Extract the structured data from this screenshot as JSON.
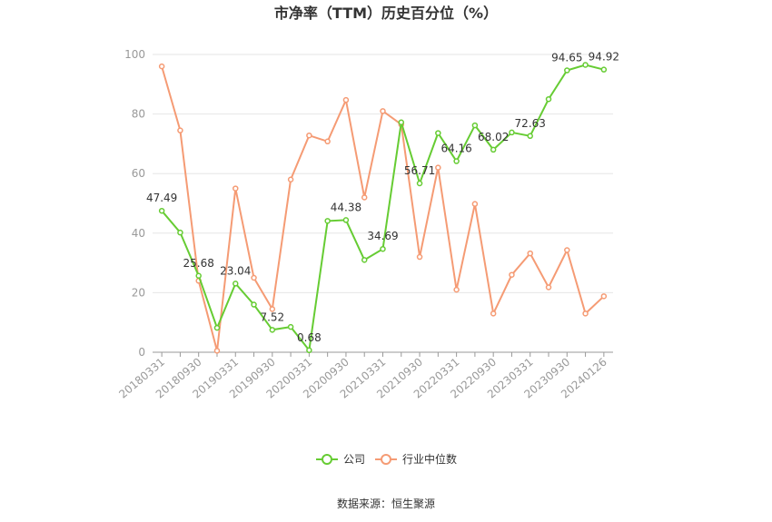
{
  "chart_data": {
    "type": "line",
    "title": "市净率（TTM）历史百分位（%）",
    "ylim": [
      0,
      100
    ],
    "yticks": [
      0,
      20,
      40,
      60,
      80,
      100
    ],
    "grid": true,
    "legend_position": "bottom",
    "x_tick_labels": [
      "20180331",
      "20180930",
      "20190331",
      "20190930",
      "20200331",
      "20200930",
      "20210331",
      "20210930",
      "20220331",
      "20220930",
      "20230331",
      "20230930",
      "20240126"
    ],
    "series": [
      {
        "name": "公司",
        "color": "#66cc33",
        "values": [
          47.49,
          40.2,
          25.68,
          8.2,
          23.04,
          16.0,
          7.52,
          8.5,
          0.68,
          44.1,
          44.38,
          31.0,
          34.69,
          77.2,
          56.71,
          73.6,
          64.16,
          76.2,
          68.02,
          73.8,
          72.63,
          85.0,
          94.65,
          96.5,
          94.92
        ]
      },
      {
        "name": "行业中位数",
        "color": "#f59b74",
        "values": [
          96.0,
          74.5,
          24.0,
          0.5,
          55.0,
          25.0,
          14.5,
          58.0,
          72.8,
          70.8,
          84.7,
          52.0,
          81.0,
          76.5,
          32.0,
          62.0,
          21.0,
          49.8,
          13.0,
          26.0,
          33.2,
          21.8,
          34.3,
          13.0,
          18.8
        ]
      }
    ],
    "data_labels": [
      {
        "index": 0,
        "text": "47.49"
      },
      {
        "index": 2,
        "text": "25.68"
      },
      {
        "index": 4,
        "text": "23.04"
      },
      {
        "index": 6,
        "text": "7.52"
      },
      {
        "index": 8,
        "text": "0.68"
      },
      {
        "index": 10,
        "text": "44.38"
      },
      {
        "index": 12,
        "text": "34.69"
      },
      {
        "index": 14,
        "text": "56.71"
      },
      {
        "index": 16,
        "text": "64.16"
      },
      {
        "index": 18,
        "text": "68.02"
      },
      {
        "index": 20,
        "text": "72.63"
      },
      {
        "index": 22,
        "text": "94.65"
      },
      {
        "index": 24,
        "text": "94.92"
      }
    ]
  },
  "source_text": "数据来源：恒生聚源"
}
